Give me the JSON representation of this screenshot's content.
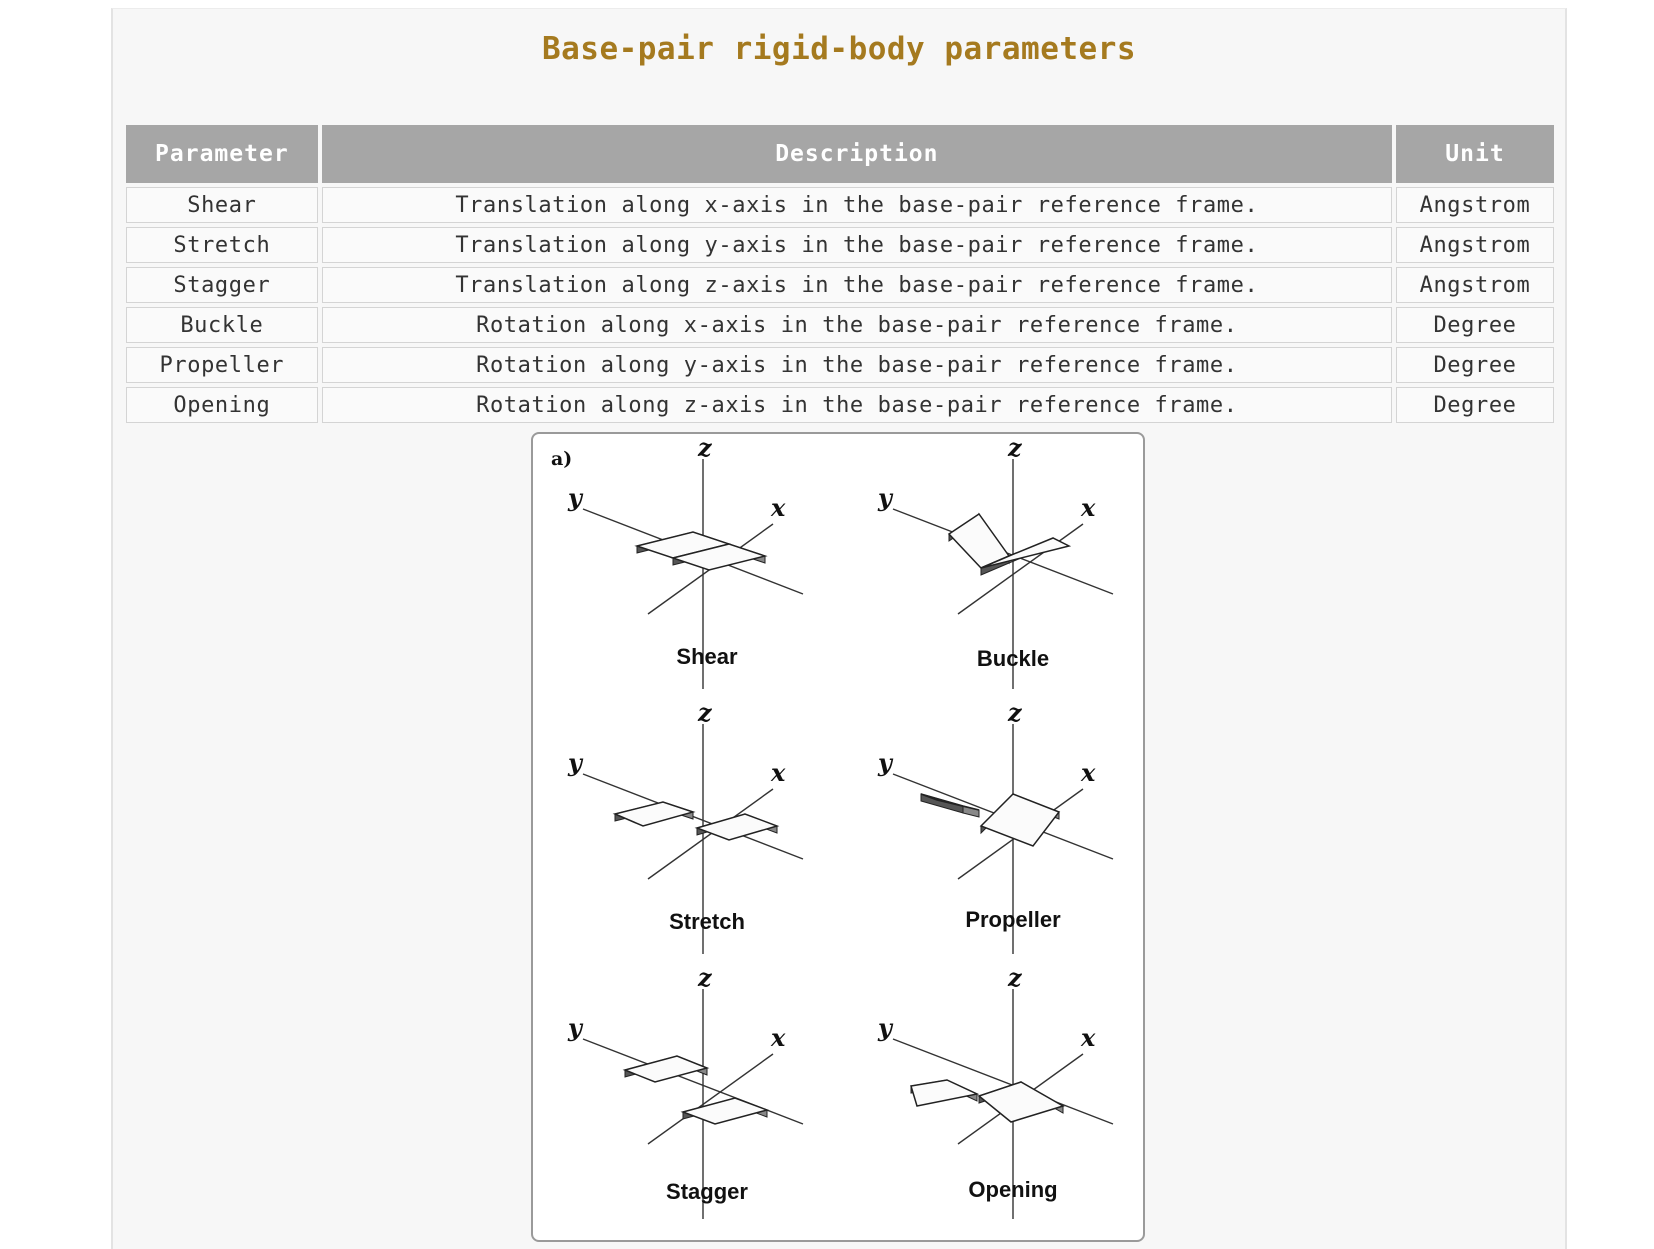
{
  "title": "Base-pair rigid-body parameters",
  "table": {
    "headers": [
      "Parameter",
      "Description",
      "Unit"
    ],
    "rows": [
      {
        "parameter": "Shear",
        "description": "Translation along x-axis in the base-pair reference frame.",
        "unit": "Angstrom"
      },
      {
        "parameter": "Stretch",
        "description": "Translation along y-axis in the base-pair reference frame.",
        "unit": "Angstrom"
      },
      {
        "parameter": "Stagger",
        "description": "Translation along z-axis in the base-pair reference frame.",
        "unit": "Angstrom"
      },
      {
        "parameter": "Buckle",
        "description": "Rotation along x-axis in the base-pair reference frame.",
        "unit": "Degree"
      },
      {
        "parameter": "Propeller",
        "description": "Rotation along y-axis in the base-pair reference frame.",
        "unit": "Degree"
      },
      {
        "parameter": "Opening",
        "description": "Rotation along z-axis in the base-pair reference frame.",
        "unit": "Degree"
      }
    ]
  },
  "figure": {
    "tag": "a)",
    "axis_labels": {
      "x": "x",
      "y": "y",
      "z": "z"
    },
    "panels": [
      "Shear",
      "Buckle",
      "Stretch",
      "Propeller",
      "Stagger",
      "Opening"
    ]
  }
}
